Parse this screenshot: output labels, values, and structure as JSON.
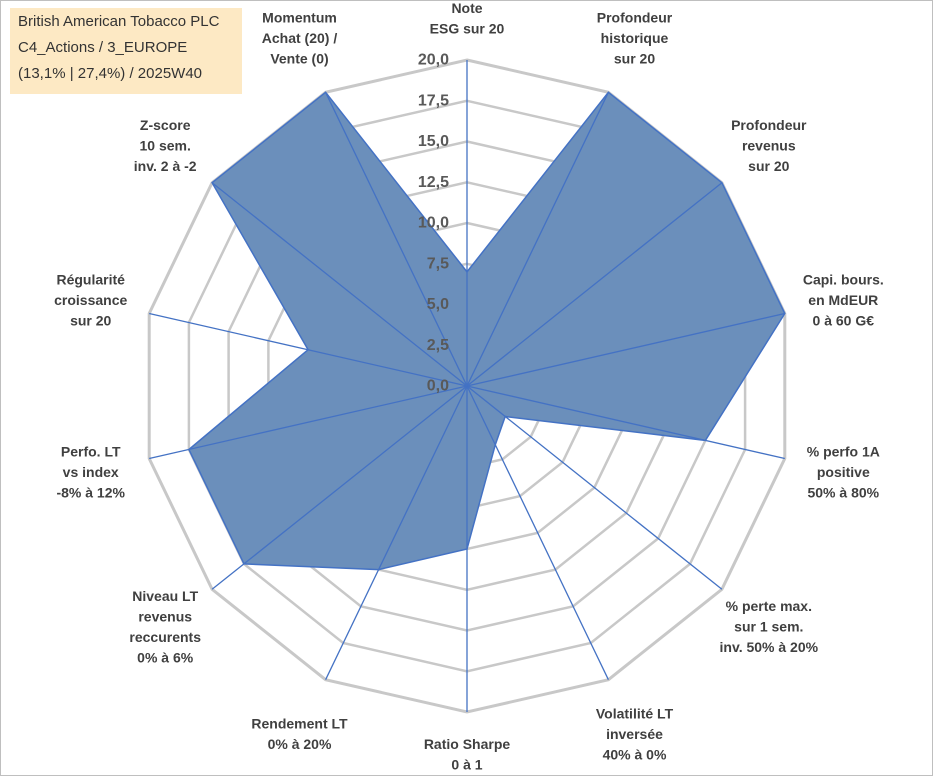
{
  "header": {
    "company": "British American Tobacco PLC",
    "category": "C4_Actions / 3_EUROPE",
    "stats": "(13,1% | 27,4%) / 2025W40"
  },
  "colors": {
    "fill": "#6b8fbb",
    "line": "#4472c4",
    "grid": "#c8c8c8",
    "infoBg": "#fde9c4"
  },
  "chart_data": {
    "type": "radar",
    "rmin": 0,
    "rmax": 20,
    "tick_labels": [
      "0,0",
      "2,5",
      "5,0",
      "7,5",
      "10,0",
      "12,5",
      "15,0",
      "17,5",
      "20,0"
    ],
    "axes": [
      {
        "lines": [
          "Note",
          "ESG sur 20"
        ],
        "value": 7
      },
      {
        "lines": [
          "Profondeur",
          "historique",
          "sur 20"
        ],
        "value": 20
      },
      {
        "lines": [
          "Profondeur",
          "revenus",
          "sur 20"
        ],
        "value": 20
      },
      {
        "lines": [
          "Capi. bours.",
          "en MdEUR",
          "0 à 60 G€"
        ],
        "value": 20
      },
      {
        "lines": [
          "% perfo 1A",
          "positive",
          "50% à 80%"
        ],
        "value": 15
      },
      {
        "lines": [
          "% perte max.",
          "sur 1 sem.",
          "inv. 50% à 20%"
        ],
        "value": 3
      },
      {
        "lines": [
          "Volatilité LT",
          "inversée",
          "40% à 0%"
        ],
        "value": 4
      },
      {
        "lines": [
          "Ratio Sharpe",
          "0 à 1"
        ],
        "value": 10
      },
      {
        "lines": [
          "Rendement LT",
          "0% à 20%"
        ],
        "value": 12.5
      },
      {
        "lines": [
          "Niveau LT",
          "revenus",
          "reccurents",
          "0% à 6%"
        ],
        "value": 17.5
      },
      {
        "lines": [
          "Perfo. LT",
          "vs index",
          "-8% à 12%"
        ],
        "value": 17.5
      },
      {
        "lines": [
          "Régularité",
          "croissance",
          "sur 20"
        ],
        "value": 10
      },
      {
        "lines": [
          "Z-score",
          "10 sem.",
          "inv. 2 à -2"
        ],
        "value": 20
      },
      {
        "lines": [
          "Momentum",
          "Achat (20) /",
          "Vente (0)"
        ],
        "value": 20
      }
    ]
  }
}
